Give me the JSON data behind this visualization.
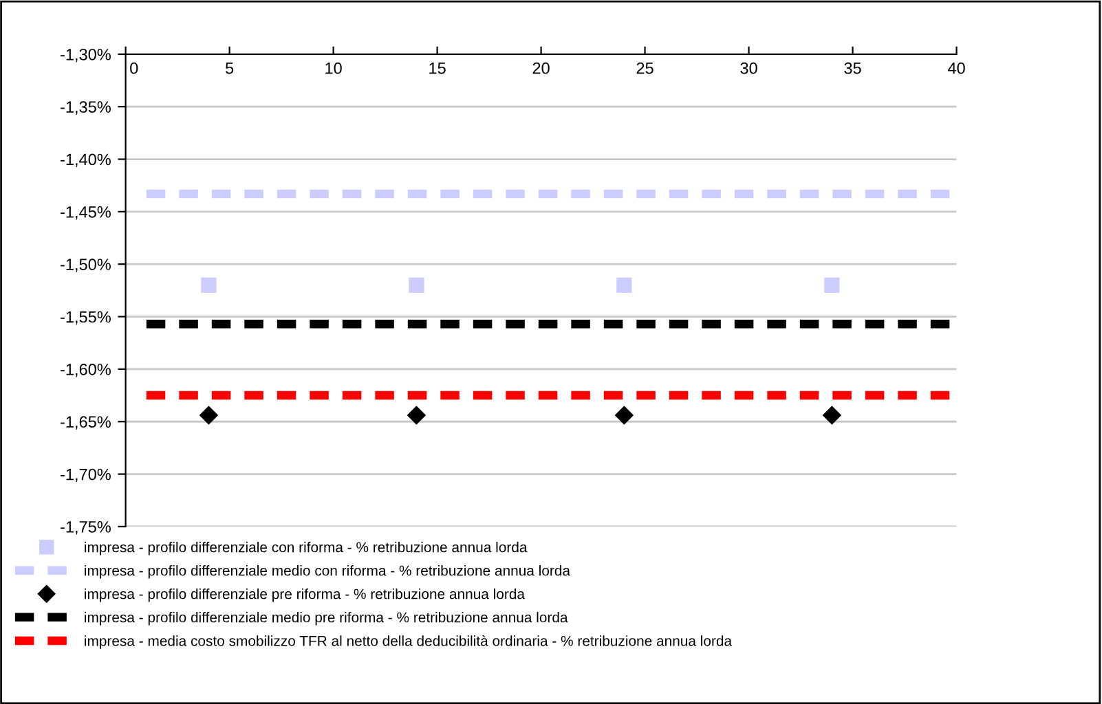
{
  "chart_data": {
    "type": "scatter",
    "series": [
      {
        "name": "impresa - profilo differenziale con riforma - % retribuzione annua lorda",
        "color": "#ccccff",
        "marker": "square",
        "x": [
          4,
          14,
          24,
          34
        ],
        "values": [
          -1.52,
          -1.52,
          -1.52,
          -1.52
        ]
      },
      {
        "name": "impresa - profilo differenziale medio con riforma - % retribuzione annua lorda",
        "type": "line",
        "color": "#ccccff",
        "line_style": "dashed",
        "x": [
          1,
          40
        ],
        "values": [
          -1.433,
          -1.433
        ]
      },
      {
        "name": "impresa - profilo differenziale pre riforma - % retribuzione annua lorda",
        "color": "#000000",
        "marker": "diamond",
        "x": [
          4,
          14,
          24,
          34
        ],
        "values": [
          -1.644,
          -1.644,
          -1.644,
          -1.644
        ]
      },
      {
        "name": "impresa - profilo differenziale medio pre riforma - % retribuzione annua lorda",
        "type": "line",
        "color": "#000000",
        "line_style": "dashed",
        "x": [
          1,
          40
        ],
        "values": [
          -1.557,
          -1.557
        ]
      },
      {
        "name": "impresa - media costo smobilizzo TFR al netto della deducibilità ordinaria - % retribuzione annua lorda",
        "type": "line",
        "color": "#ff0000",
        "line_style": "dashed",
        "x": [
          1,
          40
        ],
        "values": [
          -1.625,
          -1.625
        ]
      }
    ],
    "xlim": [
      0,
      40
    ],
    "xticks": [
      0,
      5,
      10,
      15,
      20,
      25,
      30,
      35,
      40
    ],
    "ylim": [
      -1.75,
      -1.3
    ],
    "yticks": [
      {
        "value": -1.3,
        "label": "-1,30%"
      },
      {
        "value": -1.35,
        "label": "-1,35%"
      },
      {
        "value": -1.4,
        "label": "-1,40%"
      },
      {
        "value": -1.45,
        "label": "-1,45%"
      },
      {
        "value": -1.5,
        "label": "-1,50%"
      },
      {
        "value": -1.55,
        "label": "-1,55%"
      },
      {
        "value": -1.6,
        "label": "-1,60%"
      },
      {
        "value": -1.65,
        "label": "-1,65%"
      },
      {
        "value": -1.7,
        "label": "-1,70%"
      },
      {
        "value": -1.75,
        "label": "-1,75%"
      }
    ],
    "grid": "y",
    "legend": "bottom"
  }
}
